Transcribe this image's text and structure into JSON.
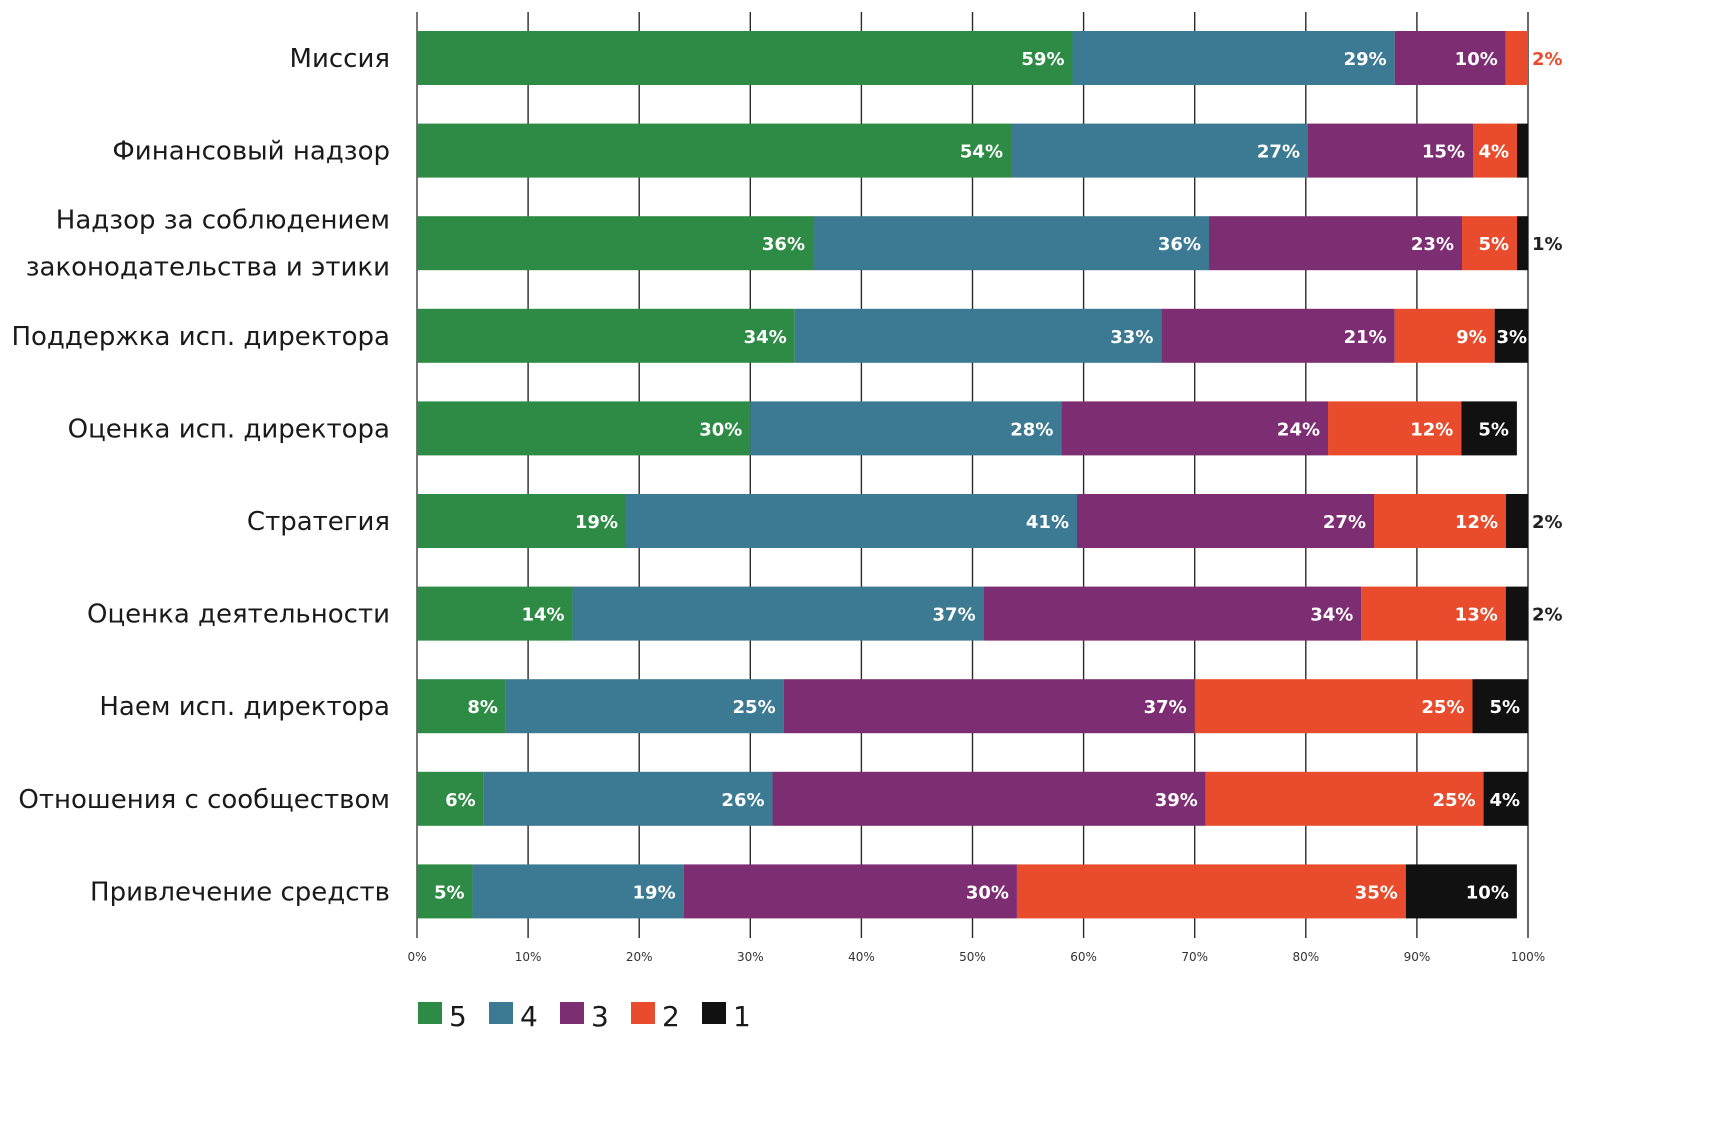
{
  "chart_data": {
    "type": "bar",
    "orientation": "horizontal",
    "stacked": true,
    "title": "",
    "xlabel": "",
    "ylabel": "",
    "xlim": [
      0,
      100
    ],
    "x_ticks": [
      "0%",
      "10%",
      "20%",
      "30%",
      "40%",
      "50%",
      "60%",
      "70%",
      "80%",
      "90%",
      "100%"
    ],
    "grid": "vertical",
    "legend_position": "bottom-left",
    "categories": [
      [
        "Миссия"
      ],
      [
        "Финансовый надзор"
      ],
      [
        "Надзор за соблюдением",
        "законодательства и этики"
      ],
      [
        "Поддержка исп. директора"
      ],
      [
        "Оценка  исп. директора"
      ],
      [
        "Стратегия"
      ],
      [
        "Оценка деятельности"
      ],
      [
        "Наем исп. директора"
      ],
      [
        "Отношения с сообществом"
      ],
      [
        "Привлечение средств"
      ]
    ],
    "series": [
      {
        "name": "5",
        "color": "#2e8b45",
        "values": [
          59,
          54,
          36,
          34,
          30,
          19,
          14,
          8,
          6,
          5
        ],
        "labels": [
          "59%",
          "54%",
          "36%",
          "34%",
          "30%",
          "19%",
          "14%",
          "8%",
          "6%",
          "5%"
        ]
      },
      {
        "name": "4",
        "color": "#3c7a94",
        "values": [
          29,
          27,
          36,
          33,
          28,
          41,
          37,
          25,
          26,
          19
        ],
        "labels": [
          "29%",
          "27%",
          "36%",
          "33%",
          "28%",
          "41%",
          "37%",
          "25%",
          "26%",
          "19%"
        ]
      },
      {
        "name": "3",
        "color": "#7d2d72",
        "values": [
          10,
          15,
          23,
          21,
          24,
          27,
          34,
          37,
          39,
          30
        ],
        "labels": [
          "10%",
          "15%",
          "23%",
          "21%",
          "24%",
          "27%",
          "34%",
          "37%",
          "39%",
          "30%"
        ]
      },
      {
        "name": "2",
        "color": "#e84c2c",
        "values": [
          2,
          4,
          5,
          9,
          12,
          12,
          13,
          25,
          25,
          35
        ],
        "labels": [
          "2%",
          "4%",
          "5%",
          "9%",
          "12%",
          "12%",
          "13%",
          "25%",
          "25%",
          "35%"
        ]
      },
      {
        "name": "1",
        "color": "#111111",
        "values": [
          0,
          1,
          1,
          3,
          5,
          2,
          2,
          5,
          4,
          10
        ],
        "labels": [
          "",
          "",
          "1%",
          "3%",
          "5%",
          "2%",
          "2%",
          "5%",
          "4%",
          "10%"
        ]
      }
    ]
  }
}
